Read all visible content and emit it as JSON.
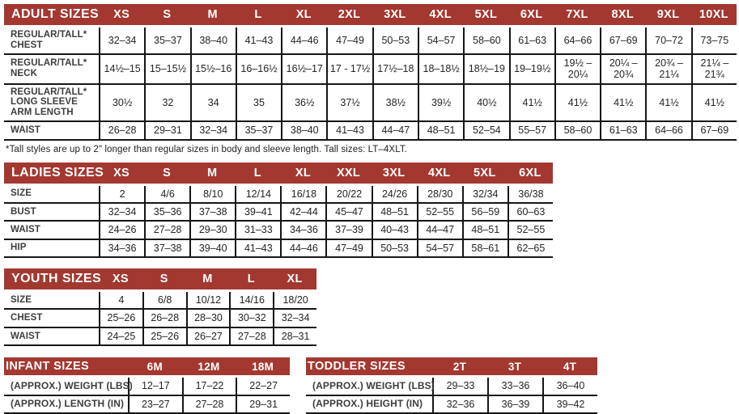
{
  "colors": {
    "header_bg": "#A33831",
    "header_text": "#FFFFFF",
    "grid_line": "#161616",
    "label_text": "#3D3D3D",
    "value_text": "#242424"
  },
  "footnote": "*Tall styles are up to 2\" longer than regular sizes in body and sleeve length. Tall sizes: LT–4XLT.",
  "tables": [
    {
      "id": "adult",
      "title": "ADULT SIZES",
      "columns": [
        "XS",
        "S",
        "M",
        "L",
        "XL",
        "2XL",
        "3XL",
        "4XL",
        "5XL",
        "6XL",
        "7XL",
        "8XL",
        "9XL",
        "10XL"
      ],
      "rows": [
        {
          "label": "REGULAR/TALL*\nCHEST",
          "values": [
            "32–34",
            "35–37",
            "38–40",
            "41–43",
            "44–46",
            "47–49",
            "50–53",
            "54–57",
            "58–60",
            "61–63",
            "64–66",
            "67–69",
            "70–72",
            "73–75"
          ]
        },
        {
          "label": "REGULAR/TALL*\nNECK",
          "values": [
            "14½–15",
            "15–15½",
            "15½–16",
            "16–16½",
            "16½–17",
            "17 - 17½",
            "17½–18",
            "18–18½",
            "18½–19",
            "19–19½",
            "19½ – 20¼",
            "20¼ – 20¾",
            "20¾ – 21¼",
            "21¼ – 21¾"
          ]
        },
        {
          "label": "REGULAR/TALL*\nLONG SLEEVE\nARM LENGTH",
          "values": [
            "30½",
            "32",
            "34",
            "35",
            "36½",
            "37½",
            "38½",
            "39½",
            "40½",
            "41½",
            "41½",
            "41½",
            "41½",
            "41½"
          ]
        },
        {
          "label": "WAIST",
          "values": [
            "26–28",
            "29–31",
            "32–34",
            "35–37",
            "38–40",
            "41–43",
            "44–47",
            "48–51",
            "52–54",
            "55–57",
            "58–60",
            "61–63",
            "64–66",
            "67–69"
          ]
        }
      ]
    },
    {
      "id": "ladies",
      "title": "LADIES SIZES",
      "columns": [
        "XS",
        "S",
        "M",
        "L",
        "XL",
        "XXL",
        "3XL",
        "4XL",
        "5XL",
        "6XL"
      ],
      "rows": [
        {
          "label": "SIZE",
          "values": [
            "2",
            "4/6",
            "8/10",
            "12/14",
            "16/18",
            "20/22",
            "24/26",
            "28/30",
            "32/34",
            "36/38"
          ]
        },
        {
          "label": "BUST",
          "values": [
            "32–34",
            "35–36",
            "37–38",
            "39–41",
            "42–44",
            "45–47",
            "48–51",
            "52–55",
            "56–59",
            "60–63"
          ]
        },
        {
          "label": "WAIST",
          "values": [
            "24–26",
            "27–28",
            "29–30",
            "31–33",
            "34–36",
            "37–39",
            "40–43",
            "44–47",
            "48–51",
            "52–55"
          ]
        },
        {
          "label": "HIP",
          "values": [
            "34–36",
            "37–38",
            "39–40",
            "41–43",
            "44–46",
            "47–49",
            "50–53",
            "54–57",
            "58–61",
            "62–65"
          ]
        }
      ]
    },
    {
      "id": "youth",
      "title": "YOUTH SIZES",
      "columns": [
        "XS",
        "S",
        "M",
        "L",
        "XL"
      ],
      "rows": [
        {
          "label": "SIZE",
          "values": [
            "4",
            "6/8",
            "10/12",
            "14/16",
            "18/20"
          ]
        },
        {
          "label": "CHEST",
          "values": [
            "25–26",
            "26–28",
            "28–30",
            "30–32",
            "32–34"
          ]
        },
        {
          "label": "WAIST",
          "values": [
            "24–25",
            "25–26",
            "26–27",
            "27–28",
            "28–31"
          ]
        }
      ]
    },
    {
      "id": "infant",
      "title": "INFANT SIZES",
      "columns": [
        "6M",
        "12M",
        "18M"
      ],
      "rows": [
        {
          "label": "(APPROX.) WEIGHT (LBS)",
          "values": [
            "12–17",
            "17–22",
            "22–27"
          ]
        },
        {
          "label": "(APPROX.) LENGTH (IN)",
          "values": [
            "23–27",
            "27–28",
            "29–31"
          ]
        }
      ]
    },
    {
      "id": "toddler",
      "title": "TODDLER SIZES",
      "columns": [
        "2T",
        "3T",
        "4T"
      ],
      "rows": [
        {
          "label": "(APPROX.) WEIGHT (LBS)",
          "values": [
            "29–33",
            "33–36",
            "36–40"
          ]
        },
        {
          "label": "(APPROX.) HEIGHT (IN)",
          "values": [
            "32–36",
            "36–39",
            "39–42"
          ]
        }
      ]
    }
  ]
}
